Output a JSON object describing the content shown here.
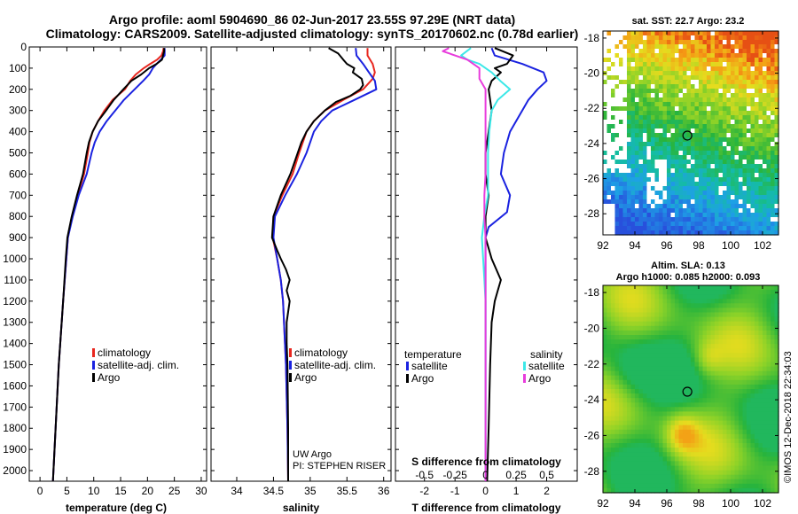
{
  "title": {
    "line1": "Argo profile: aoml 5904690_86 02-Jun-2017 23.55S 97.29E (NRT data)",
    "line2": "Climatology: CARS2009. Satellite-adjusted climatology: synTS_20170602.nc (0.78d earlier)"
  },
  "depth_ticks": [
    "0",
    "100",
    "200",
    "300",
    "400",
    "500",
    "600",
    "700",
    "800",
    "900",
    "1000",
    "1100",
    "1200",
    "1300",
    "1400",
    "1500",
    "1600",
    "1700",
    "1800",
    "1900",
    "2000"
  ],
  "colors": {
    "climatology": "#e8261e",
    "satellite": "#1a22e0",
    "argo": "#000000",
    "sal_satellite": "#3de8e8",
    "sal_argo": "#e83cdc"
  },
  "chart_data": [
    {
      "type": "line",
      "title": "",
      "xlabel": "temperature (deg C)",
      "ylabel": "depth",
      "xlim": [
        -2,
        31
      ],
      "ylim": [
        2050,
        0
      ],
      "xticks": [
        "0",
        "5",
        "10",
        "15",
        "20",
        "25",
        "30"
      ],
      "legend": [
        "climatology",
        "satellite-adj. clim.",
        "Argo"
      ],
      "series": [
        {
          "name": "climatology",
          "depth": [
            5,
            20,
            40,
            60,
            80,
            100,
            130,
            160,
            200,
            250,
            300,
            350,
            400,
            450,
            500,
            600,
            700,
            800,
            900,
            1000,
            1200,
            1500,
            1800,
            2050
          ],
          "values": [
            23.0,
            22.9,
            22.6,
            21.8,
            20.5,
            19.3,
            17.8,
            16.8,
            15.8,
            13.5,
            12.0,
            10.8,
            9.8,
            9.2,
            8.9,
            8.2,
            7.0,
            6.0,
            5.2,
            4.9,
            4.3,
            3.5,
            2.9,
            2.4
          ]
        },
        {
          "name": "satellite-adj. clim.",
          "depth": [
            5,
            40,
            60,
            80,
            100,
            130,
            160,
            200,
            250,
            300,
            350,
            400,
            450,
            500,
            600,
            700,
            800,
            900,
            1000,
            1200,
            1500,
            1800,
            2050
          ],
          "values": [
            23.2,
            23.2,
            22.5,
            21.7,
            21.0,
            20.3,
            19.2,
            17.6,
            15.6,
            14.0,
            12.4,
            11.1,
            10.2,
            9.6,
            8.7,
            7.2,
            6.1,
            5.2,
            4.9,
            4.3,
            3.5,
            2.9,
            2.4
          ]
        },
        {
          "name": "Argo",
          "depth": [
            5,
            20,
            60,
            80,
            100,
            130,
            160,
            200,
            250,
            300,
            350,
            400,
            450,
            500,
            600,
            700,
            800,
            900,
            1000,
            1200,
            1500,
            1800,
            2050
          ],
          "values": [
            23.1,
            23.1,
            22.7,
            21.7,
            20.3,
            18.8,
            17.0,
            15.5,
            13.7,
            12.3,
            10.8,
            9.8,
            9.1,
            8.7,
            8.0,
            6.9,
            5.9,
            5.1,
            4.8,
            4.3,
            3.5,
            2.9,
            2.4
          ]
        }
      ]
    },
    {
      "type": "line",
      "title": "",
      "xlabel": "salinity",
      "ylabel": "depth",
      "xlim": [
        33.65,
        36.1
      ],
      "ylim": [
        2050,
        0
      ],
      "xticks": [
        "34",
        "34.5",
        "35",
        "35.5",
        "36"
      ],
      "legend": [
        "climatology",
        "satellite-adj. clim.",
        "Argo"
      ],
      "series": [
        {
          "name": "climatology",
          "depth": [
            5,
            40,
            80,
            120,
            150,
            200,
            250,
            300,
            350,
            400,
            500,
            600,
            700,
            800,
            900,
            1000,
            1100,
            1200,
            1500,
            1800,
            2050
          ],
          "values": [
            35.78,
            35.78,
            35.85,
            35.88,
            35.85,
            35.72,
            35.45,
            35.2,
            35.05,
            34.95,
            34.85,
            34.76,
            34.62,
            34.5,
            34.49,
            34.55,
            34.6,
            34.63,
            34.67,
            34.69,
            34.7
          ]
        },
        {
          "name": "satellite-adj. clim.",
          "depth": [
            5,
            40,
            80,
            120,
            160,
            200,
            250,
            300,
            350,
            400,
            500,
            600,
            700,
            800,
            900,
            1000,
            1100,
            1200,
            1500,
            1800,
            2050
          ],
          "values": [
            35.62,
            35.63,
            35.72,
            35.8,
            35.88,
            35.9,
            35.6,
            35.3,
            35.15,
            35.05,
            34.95,
            34.82,
            34.66,
            34.52,
            34.5,
            34.55,
            34.6,
            34.63,
            34.67,
            34.69,
            34.7
          ]
        },
        {
          "name": "Argo",
          "depth": [
            5,
            30,
            60,
            80,
            100,
            120,
            150,
            180,
            200,
            230,
            260,
            300,
            350,
            400,
            450,
            500,
            600,
            700,
            800,
            900,
            960,
            1000,
            1050,
            1100,
            1150,
            1200,
            1250,
            1300,
            1400,
            1500,
            1800,
            2050
          ],
          "values": [
            35.25,
            35.38,
            35.45,
            35.5,
            35.6,
            35.58,
            35.7,
            35.72,
            35.68,
            35.55,
            35.35,
            35.2,
            35.05,
            34.95,
            34.88,
            34.83,
            34.73,
            34.6,
            34.5,
            34.48,
            34.55,
            34.6,
            34.67,
            34.72,
            34.68,
            34.72,
            34.7,
            34.68,
            34.68,
            34.69,
            34.7,
            34.7
          ]
        }
      ]
    },
    {
      "type": "line",
      "title": "",
      "xlabel": "T difference from climatology",
      "x2label": "S difference from climatology",
      "ylabel": "depth",
      "xlim": [
        -2.95,
        3.0
      ],
      "ylim": [
        2050,
        0
      ],
      "xticks": [
        "-2",
        "-1",
        "0",
        "1",
        "2"
      ],
      "x2ticks": [
        "-0.5",
        "-0.25",
        "0",
        "0.25",
        "0.5"
      ],
      "legend_temperature": [
        "satellite",
        "Argo"
      ],
      "legend_salinity": [
        "satellite",
        "Argo"
      ],
      "series": [
        {
          "name": "T satellite",
          "depth": [
            5,
            40,
            80,
            120,
            160,
            200,
            250,
            300,
            400,
            500,
            600,
            700,
            780,
            850,
            900,
            1000,
            1200,
            1500,
            1800,
            2050
          ],
          "values": [
            0.2,
            0.3,
            1.2,
            1.9,
            2.0,
            1.7,
            1.4,
            1.2,
            0.8,
            0.6,
            0.5,
            0.8,
            0.7,
            0.1,
            0.0,
            0.0,
            0.0,
            0.0,
            0.0,
            0.0
          ]
        },
        {
          "name": "T Argo",
          "depth": [
            5,
            40,
            80,
            100,
            120,
            160,
            200,
            300,
            400,
            500,
            600,
            700,
            800,
            900,
            1000,
            1100,
            1150,
            1200,
            1300,
            1500,
            1800,
            2050
          ],
          "values": [
            0.3,
            0.9,
            0.7,
            0.3,
            0.5,
            0.2,
            0.1,
            0.2,
            0.1,
            0.0,
            0.0,
            0.1,
            0.0,
            0.0,
            0.2,
            0.5,
            0.4,
            0.3,
            0.2,
            0.15,
            0.1,
            0.05
          ]
        },
        {
          "name": "S satellite",
          "depth": [
            5,
            40,
            60,
            80,
            120,
            160,
            200,
            250,
            300,
            400,
            500,
            600,
            700,
            800,
            900,
            1000,
            1100,
            1200,
            1500,
            1800,
            2050
          ],
          "values": [
            -0.12,
            -0.2,
            -0.15,
            -0.05,
            0.05,
            0.12,
            0.2,
            0.1,
            0.05,
            0.03,
            0.02,
            0.02,
            0.02,
            -0.01,
            -0.03,
            -0.02,
            -0.01,
            0.0,
            0.0,
            0.0,
            0.0
          ]
        },
        {
          "name": "S Argo",
          "depth": [
            5,
            20,
            60,
            100,
            150,
            200,
            300,
            400,
            500,
            600,
            700,
            800,
            900,
            1000,
            1200,
            1500,
            1800,
            2050
          ],
          "values": [
            -0.3,
            -0.35,
            -0.15,
            -0.05,
            -0.05,
            0.0,
            0.0,
            0.0,
            0.0,
            0.0,
            -0.01,
            -0.01,
            0.0,
            0.0,
            0.0,
            0.0,
            0.0,
            0.0
          ]
        }
      ]
    }
  ],
  "maps": {
    "sst_title": "sat. SST: 22.7 Argo: 23.2",
    "sla_title1": "Altim. SLA: 0.13",
    "sla_title2": "Argo h1000: 0.085 h2000: 0.093",
    "lat_ticks": [
      "-18",
      "-20",
      "-22",
      "-24",
      "-26",
      "-28"
    ],
    "lon_ticks": [
      "92",
      "94",
      "96",
      "98",
      "100",
      "102"
    ]
  },
  "credits": {
    "line1": "UW Argo",
    "line2": "PI: STEPHEN RISER"
  },
  "footer": "©IMOS 12-Dec-2018 22:34:03"
}
